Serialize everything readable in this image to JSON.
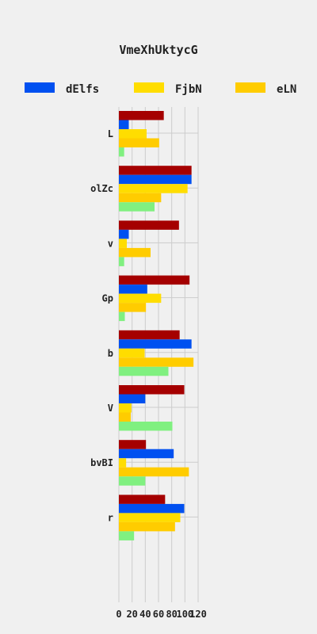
{
  "chart_data": {
    "type": "bar",
    "orientation": "horizontal",
    "title": "VmeXhUktycG",
    "xlabel": "",
    "ylabel": "",
    "xlim": [
      0,
      120
    ],
    "xticks": [
      "0",
      "20",
      "40",
      "60",
      "80",
      "100",
      "120"
    ],
    "grid": true,
    "legend_position": "top",
    "categories": [
      "L",
      "olZc",
      "v",
      "Gp",
      "b",
      "V",
      "bvBI",
      "r"
    ],
    "series": [
      {
        "name": "",
        "color": "#a50000",
        "values": [
          68,
          110,
          91,
          107,
          92,
          99,
          41,
          70
        ]
      },
      {
        "name": "dElfs",
        "color": "#0050f0",
        "values": [
          15,
          110,
          15,
          43,
          110,
          40,
          83,
          99
        ]
      },
      {
        "name": "FjbN",
        "color": "#ffdd00",
        "values": [
          42,
          104,
          12,
          64,
          39,
          19,
          11,
          93
        ]
      },
      {
        "name": "eLN",
        "color": "#ffcc00",
        "values": [
          61,
          64,
          48,
          41,
          113,
          18,
          106,
          85
        ]
      },
      {
        "name": "",
        "color": "#80f080",
        "values": [
          8,
          54,
          8,
          9,
          75,
          81,
          40,
          23
        ]
      }
    ]
  }
}
